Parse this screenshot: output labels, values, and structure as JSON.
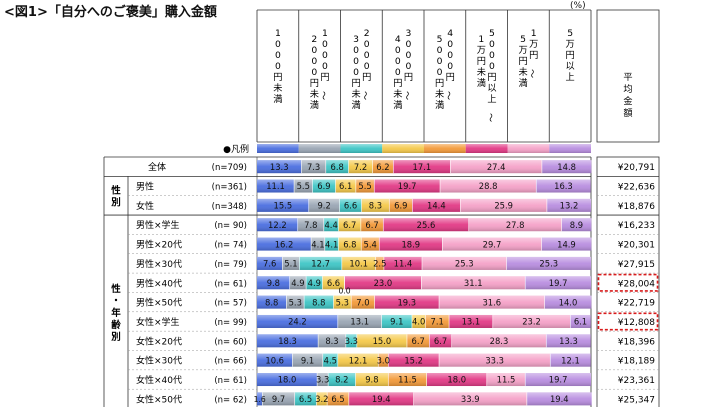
{
  "figure": {
    "title": "<図1>「自分へのご褒美」購入金額",
    "unit": "(%)"
  },
  "legend_label": "●凡例",
  "columns": {
    "avg_header": "平均金額"
  },
  "groups": [
    {
      "label": "性別",
      "start": 1,
      "end": 2
    },
    {
      "label": "性・年齢別",
      "start": 3,
      "end": 12
    }
  ],
  "highlighted_rows": [
    6,
    8
  ],
  "chart_data": {
    "type": "bar",
    "orientation": "horizontal",
    "stacked": true,
    "percent": true,
    "categories": [
      "1000円未満",
      "1000円～2000円未満",
      "2000円～3000円未満",
      "3000円～4000円未満",
      "4000円～5000円未満",
      "5000円以上～1万円未満",
      "1万円～5万円未満",
      "5万円以上"
    ],
    "colors": [
      "#4b6fe0",
      "#9aa6b4",
      "#3fc6c6",
      "#f5c94a",
      "#f39a3a",
      "#e23a86",
      "#f5a2c8",
      "#b98ee0"
    ],
    "rows": [
      {
        "label": "全体",
        "n": "(n=709)",
        "values": [
          13.3,
          7.3,
          6.8,
          7.2,
          6.2,
          17.1,
          27.4,
          14.8
        ],
        "avg": "¥20,791"
      },
      {
        "label": "男性",
        "n": "(n=361)",
        "values": [
          11.1,
          5.5,
          6.9,
          6.1,
          5.5,
          19.7,
          28.8,
          16.3
        ],
        "avg": "¥22,636"
      },
      {
        "label": "女性",
        "n": "(n=348)",
        "values": [
          15.5,
          9.2,
          6.6,
          8.3,
          6.9,
          14.4,
          25.9,
          13.2
        ],
        "avg": "¥18,876"
      },
      {
        "label": "男性×学生",
        "n": "(n= 90)",
        "values": [
          12.2,
          7.8,
          4.4,
          6.7,
          6.7,
          25.6,
          27.8,
          8.9
        ],
        "avg": "¥16,233"
      },
      {
        "label": "男性×20代",
        "n": "(n= 74)",
        "values": [
          16.2,
          4.1,
          4.1,
          6.8,
          5.4,
          18.9,
          29.7,
          14.9
        ],
        "avg": "¥20,301"
      },
      {
        "label": "男性×30代",
        "n": "(n= 79)",
        "values": [
          7.6,
          5.1,
          12.7,
          10.1,
          2.5,
          11.4,
          25.3,
          25.3
        ],
        "avg": "¥27,915"
      },
      {
        "label": "男性×40代",
        "n": "(n= 61)",
        "values": [
          9.8,
          4.9,
          4.9,
          6.6,
          0.0,
          23.0,
          31.1,
          19.7
        ],
        "avg": "¥28,004"
      },
      {
        "label": "男性×50代",
        "n": "(n= 57)",
        "values": [
          8.8,
          5.3,
          8.8,
          5.3,
          7.0,
          19.3,
          31.6,
          14.0
        ],
        "avg": "¥22,719"
      },
      {
        "label": "女性×学生",
        "n": "(n= 99)",
        "values": [
          24.2,
          13.1,
          9.1,
          4.0,
          7.1,
          13.1,
          23.2,
          6.1
        ],
        "avg": "¥12,808"
      },
      {
        "label": "女性×20代",
        "n": "(n= 60)",
        "values": [
          18.3,
          8.3,
          3.3,
          15.0,
          6.7,
          6.7,
          28.3,
          13.3
        ],
        "avg": "¥18,396"
      },
      {
        "label": "女性×30代",
        "n": "(n= 66)",
        "values": [
          10.6,
          9.1,
          4.5,
          12.1,
          3.0,
          15.2,
          33.3,
          12.1
        ],
        "avg": "¥18,189"
      },
      {
        "label": "女性×40代",
        "n": "(n= 61)",
        "values": [
          18.0,
          3.3,
          8.2,
          9.8,
          11.5,
          18.0,
          11.5,
          19.7
        ],
        "avg": "¥23,361"
      },
      {
        "label": "女性×50代",
        "n": "(n= 62)",
        "values": [
          1.6,
          9.7,
          6.5,
          3.2,
          6.5,
          19.4,
          33.9,
          19.4
        ],
        "avg": "¥25,347"
      }
    ],
    "xlim": [
      0,
      100
    ]
  }
}
